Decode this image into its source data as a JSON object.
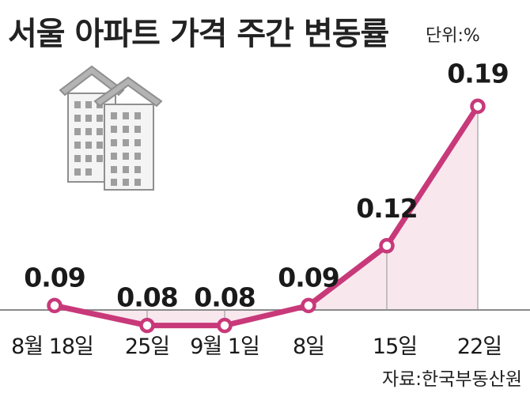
{
  "chart_data": {
    "type": "line",
    "title": "서울 아파트 가격 주간 변동률",
    "unit_label": "단위:%",
    "categories": [
      "8월 18일",
      "25일",
      "9월 1일",
      "8일",
      "15일",
      "22일"
    ],
    "values": [
      0.09,
      0.08,
      0.08,
      0.09,
      0.12,
      0.19
    ],
    "value_labels": [
      "0.09",
      "0.08",
      "0.08",
      "0.09",
      "0.12",
      "0.19"
    ],
    "source": "자료:한국부동산원",
    "grid": false,
    "line_color": "#c8397a",
    "area_color": "#f8e8ee",
    "marker_fill": "#ffffff",
    "illustration": "apartment-buildings-icon"
  }
}
